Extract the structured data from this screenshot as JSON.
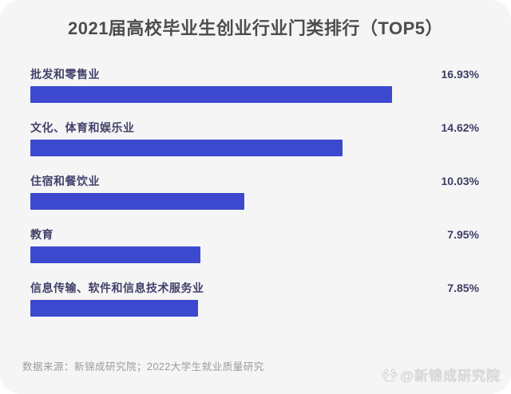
{
  "title": "2021届高校毕业生创业行业门类排行（TOP5）",
  "footer": {
    "source": "数据来源：新锦成研究院；2022大学生就业质量研究"
  },
  "watermark": {
    "icon": "baidu-paw-icon",
    "text": "@新锦成研究院"
  },
  "colors": {
    "bar": "#3c49cf",
    "label_text": "#42426b",
    "value_text": "#3d3d66",
    "title_text": "#4d4d4d",
    "card_background": "#f5f5f5",
    "page_background": "#ffffff",
    "footer_text": "#9b9b9b",
    "watermark_text": "#dadada"
  },
  "chart_data": {
    "type": "bar",
    "orientation": "horizontal",
    "title": "2021届高校毕业生创业行业门类排行（TOP5）",
    "categories": [
      "批发和零售业",
      "文化、体育和娱乐业",
      "住宿和餐饮业",
      "教育",
      "信息传输、软件和信息技术服务业"
    ],
    "values": [
      16.93,
      14.62,
      10.03,
      7.95,
      7.85
    ],
    "value_labels": [
      "16.93%",
      "14.62%",
      "10.03%",
      "7.95%",
      "7.85%"
    ],
    "xlabel": "",
    "ylabel": "",
    "xlim": [
      0,
      17
    ],
    "grid": false,
    "legend": false,
    "value_label_position": "right-aligned-column"
  }
}
